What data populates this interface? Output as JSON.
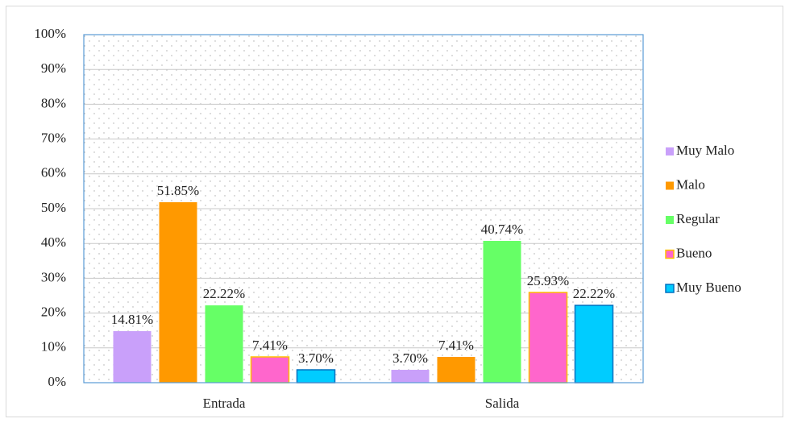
{
  "chart_data": {
    "type": "bar",
    "categories": [
      "Entrada",
      "Salida"
    ],
    "series": [
      {
        "name": "Muy Malo",
        "color": "#c9a0fa",
        "values": [
          14.81,
          3.7
        ],
        "value_labels": [
          "14.81%",
          "3.70%"
        ]
      },
      {
        "name": "Malo",
        "color": "#ff9900",
        "values": [
          51.85,
          7.41
        ],
        "value_labels": [
          "51.85%",
          "7.41%"
        ]
      },
      {
        "name": "Regular",
        "color": "#66ff66",
        "values": [
          22.22,
          40.74
        ],
        "value_labels": [
          "22.22%",
          "40.74%"
        ]
      },
      {
        "name": "Bueno",
        "color": "#ff66cc",
        "edgecolor": "#ffc000",
        "values": [
          7.41,
          25.93
        ],
        "value_labels": [
          "7.41%",
          "25.93%"
        ]
      },
      {
        "name": "Muy Bueno",
        "color": "#00ccff",
        "edgecolor": "#0070c0",
        "values": [
          3.7,
          22.22
        ],
        "value_labels": [
          "3.70%",
          "22.22%"
        ]
      }
    ],
    "ylim": [
      0,
      100
    ],
    "yticks": [
      {
        "value": 0,
        "label": "0%"
      },
      {
        "value": 10,
        "label": "10%"
      },
      {
        "value": 20,
        "label": "20%"
      },
      {
        "value": 30,
        "label": "30%"
      },
      {
        "value": 40,
        "label": "40%"
      },
      {
        "value": 50,
        "label": "50%"
      },
      {
        "value": 60,
        "label": "60%"
      },
      {
        "value": 70,
        "label": "70%"
      },
      {
        "value": 80,
        "label": "80%"
      },
      {
        "value": 90,
        "label": "90%"
      },
      {
        "value": 100,
        "label": "100%"
      }
    ],
    "grid": true,
    "legend": "right"
  }
}
